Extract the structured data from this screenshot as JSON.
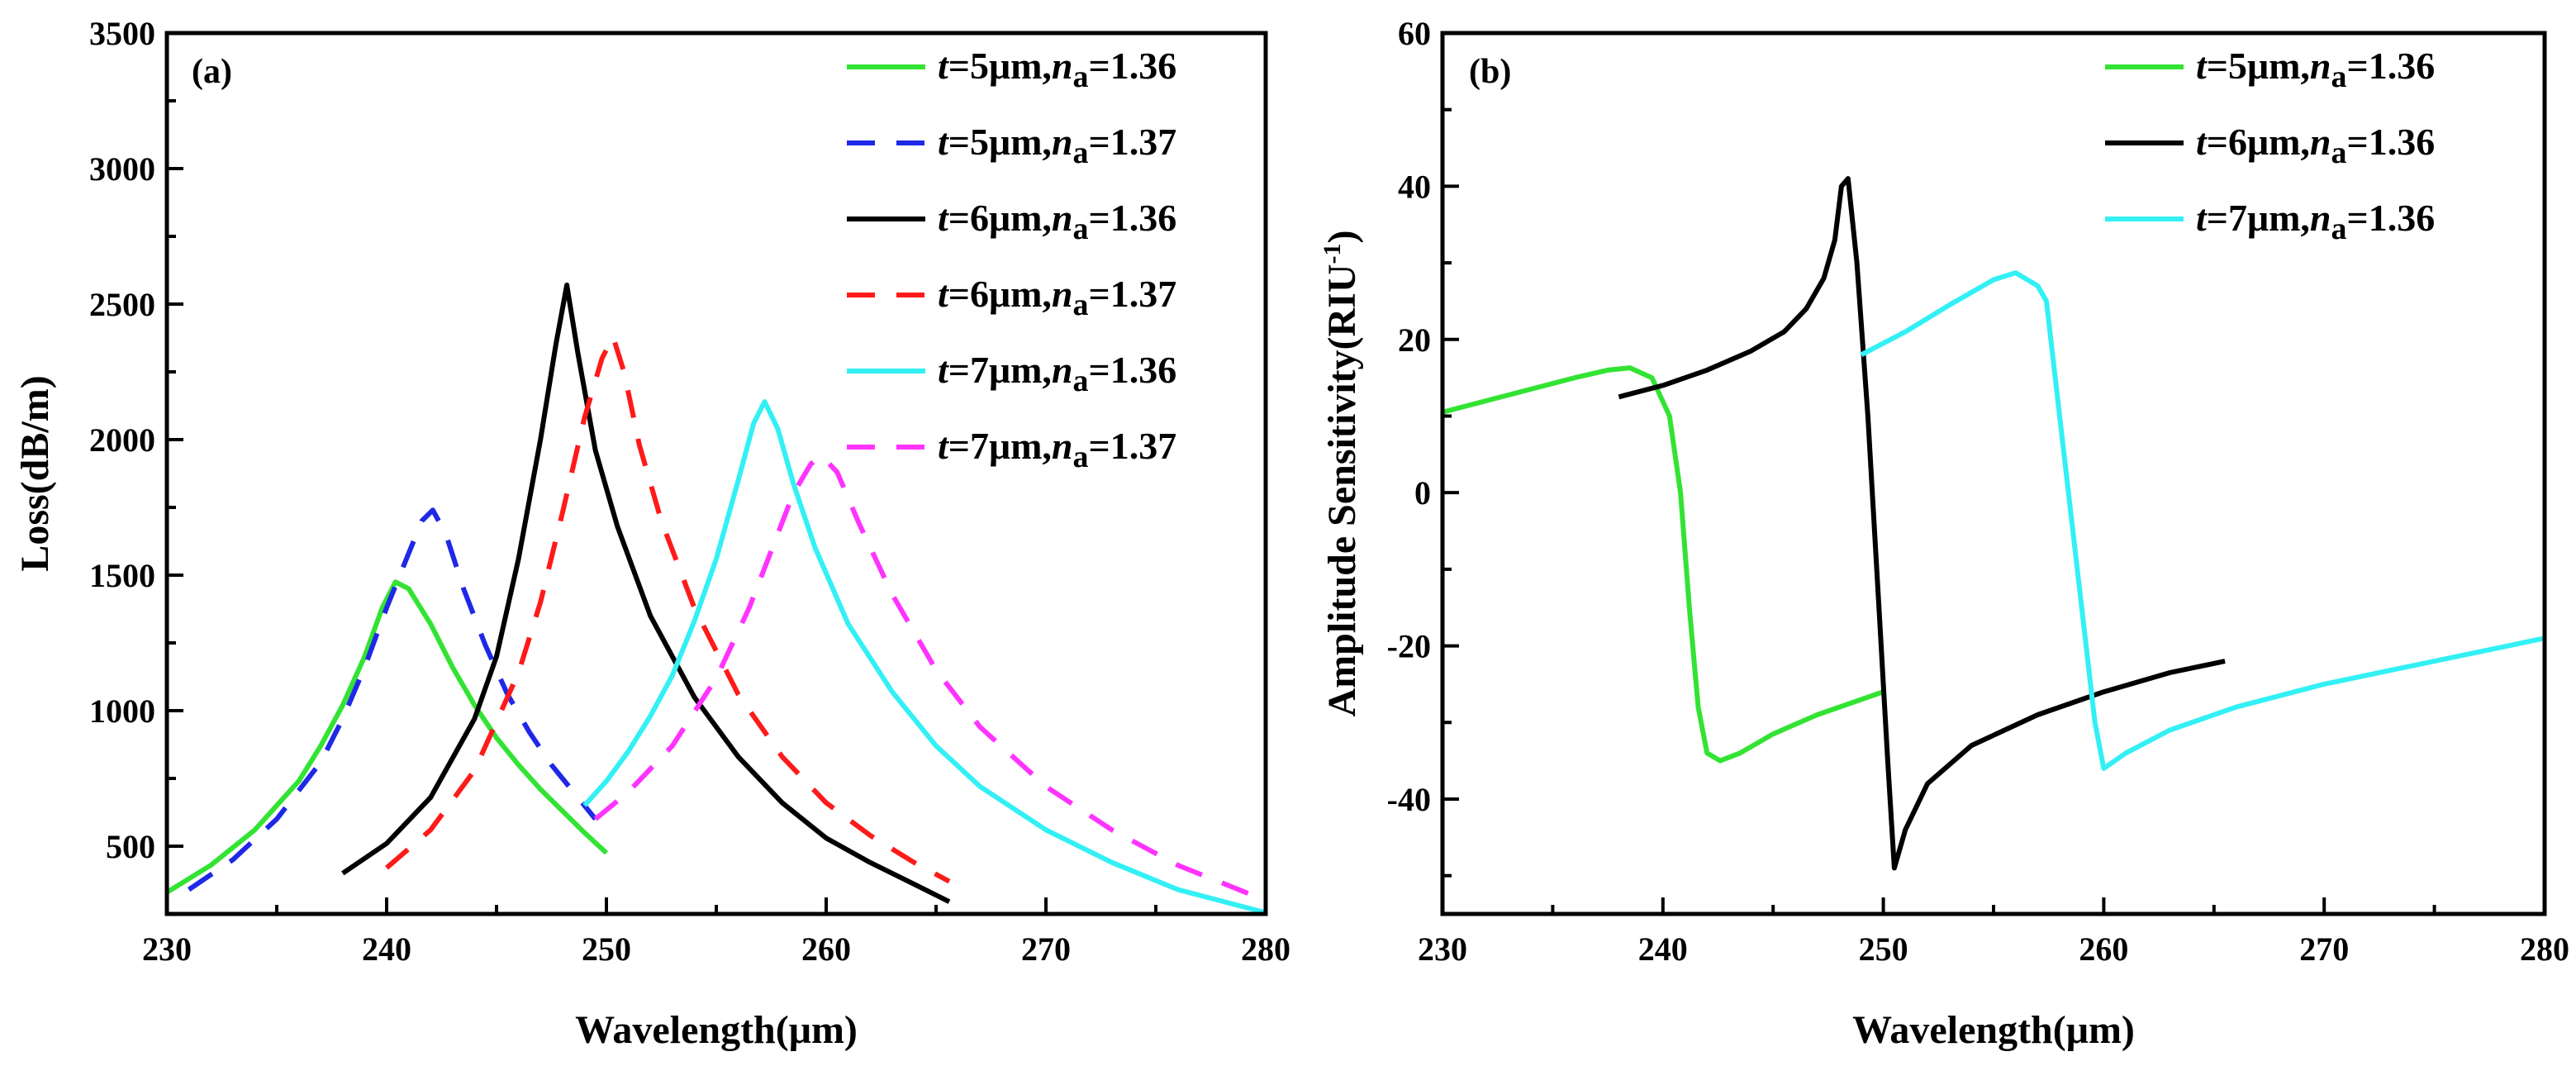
{
  "chart_data": [
    {
      "panel": "(a)",
      "type": "line",
      "xlabel": "Wavelength(μm)",
      "ylabel": "Loss(dB/m)",
      "xlim": [
        230,
        280
      ],
      "ylim": [
        250,
        3500
      ],
      "xticks": [
        230,
        240,
        250,
        260,
        270,
        280
      ],
      "yticks": [
        500,
        1000,
        1500,
        2000,
        2500,
        3000,
        3500
      ],
      "legend_position": "top-right",
      "series": [
        {
          "t": "5",
          "na": "1.36",
          "color": "#33e333",
          "dash": "solid",
          "x": [
            230,
            232,
            234,
            236,
            237,
            238,
            239,
            239.8,
            240.4,
            241,
            242,
            243,
            244,
            245,
            246,
            247,
            248,
            249,
            250
          ],
          "y": [
            330,
            430,
            560,
            740,
            870,
            1020,
            1200,
            1380,
            1475,
            1450,
            1320,
            1160,
            1020,
            900,
            800,
            710,
            630,
            550,
            475
          ]
        },
        {
          "t": "5",
          "na": "1.37",
          "color": "#1f28e6",
          "dash": "dashed",
          "x": [
            231,
            233,
            235,
            237,
            238,
            239,
            240,
            241,
            241.6,
            242.1,
            242.7,
            243.5,
            244.5,
            245.5,
            246.5,
            247.5,
            248.5,
            249.5
          ],
          "y": [
            340,
            450,
            600,
            810,
            970,
            1160,
            1380,
            1580,
            1700,
            1740,
            1650,
            1450,
            1240,
            1060,
            920,
            800,
            700,
            600
          ]
        },
        {
          "t": "6",
          "na": "1.36",
          "color": "#000000",
          "dash": "solid",
          "x": [
            238,
            240,
            242,
            244,
            245,
            246,
            247,
            247.7,
            248.2,
            248.7,
            249.5,
            250.5,
            252,
            254,
            256,
            258,
            260,
            262,
            264,
            265.6
          ],
          "y": [
            400,
            510,
            680,
            970,
            1200,
            1560,
            2000,
            2350,
            2570,
            2320,
            1960,
            1680,
            1350,
            1050,
            830,
            660,
            530,
            440,
            360,
            295
          ]
        },
        {
          "t": "6",
          "na": "1.37",
          "color": "#ff1a1a",
          "dash": "dashed",
          "x": [
            240,
            242,
            244,
            246,
            247,
            248,
            249,
            249.8,
            250.3,
            250.8,
            251.5,
            252.5,
            254,
            256,
            258,
            260,
            262,
            264,
            265.6
          ],
          "y": [
            420,
            560,
            780,
            1140,
            1400,
            1730,
            2080,
            2300,
            2380,
            2250,
            1980,
            1700,
            1380,
            1060,
            830,
            660,
            540,
            440,
            370
          ]
        },
        {
          "t": "7",
          "na": "1.36",
          "color": "#33f0f5",
          "dash": "solid",
          "x": [
            249,
            250,
            251,
            252,
            253,
            254,
            255,
            256,
            256.7,
            257.2,
            257.8,
            258.5,
            259.5,
            261,
            263,
            265,
            267,
            270,
            273,
            276,
            280
          ],
          "y": [
            650,
            740,
            850,
            980,
            1130,
            1330,
            1560,
            1850,
            2060,
            2140,
            2040,
            1840,
            1600,
            1320,
            1070,
            870,
            720,
            560,
            440,
            340,
            255
          ]
        },
        {
          "t": "7",
          "na": "1.37",
          "color": "#ff33ff",
          "dash": "dashed",
          "x": [
            249.5,
            251,
            253,
            255,
            256.5,
            257.5,
            258.5,
            259.3,
            259.8,
            260.5,
            261.5,
            263,
            265,
            267,
            270,
            273,
            276,
            280
          ],
          "y": [
            600,
            700,
            870,
            1120,
            1380,
            1590,
            1800,
            1910,
            1940,
            1880,
            1690,
            1430,
            1150,
            940,
            720,
            560,
            430,
            300
          ]
        }
      ]
    },
    {
      "panel": "(b)",
      "type": "line",
      "xlabel": "Wavelength(μm)",
      "ylabel": "Amplitude Sensitivity(RIU",
      "ylabel_sup": "-1",
      "ylabel_close": ")",
      "xlim": [
        230,
        280
      ],
      "ylim": [
        -55,
        60
      ],
      "xticks": [
        230,
        240,
        250,
        260,
        270,
        280
      ],
      "yticks": [
        -40,
        -20,
        0,
        20,
        40,
        60
      ],
      "legend_position": "top-right",
      "series": [
        {
          "t": "5",
          "na": "1.36",
          "color": "#33e333",
          "dash": "solid",
          "x": [
            230,
            232,
            234,
            236,
            237.5,
            238.5,
            239.5,
            240.3,
            240.8,
            241.2,
            241.6,
            242,
            242.6,
            243.5,
            245,
            247,
            250
          ],
          "y": [
            10.5,
            12,
            13.5,
            15,
            16,
            16.3,
            15,
            10,
            0,
            -15,
            -28,
            -34,
            -35,
            -34,
            -31.5,
            -29,
            -26
          ]
        },
        {
          "t": "6",
          "na": "1.36",
          "color": "#000000",
          "dash": "solid",
          "x": [
            238,
            240,
            242,
            244,
            245.5,
            246.5,
            247.3,
            247.8,
            248.1,
            248.4,
            248.8,
            249.3,
            249.8,
            250.2,
            250.5,
            251,
            252,
            254,
            257,
            260,
            263,
            265.5
          ],
          "y": [
            12.5,
            14,
            16,
            18.5,
            21,
            24,
            28,
            33,
            40,
            41,
            30,
            10,
            -15,
            -35,
            -49,
            -44,
            -38,
            -33,
            -29,
            -26,
            -23.5,
            -22
          ]
        },
        {
          "t": "7",
          "na": "1.36",
          "color": "#33f0f5",
          "dash": "solid",
          "x": [
            249,
            251,
            253,
            255,
            256,
            257,
            257.4,
            258,
            259,
            259.6,
            260,
            261,
            263,
            266,
            270,
            275,
            280
          ],
          "y": [
            18,
            21,
            24.5,
            27.8,
            28.7,
            27,
            25,
            10,
            -15,
            -30,
            -36,
            -34,
            -31,
            -28,
            -25,
            -22,
            -19
          ]
        }
      ]
    }
  ]
}
